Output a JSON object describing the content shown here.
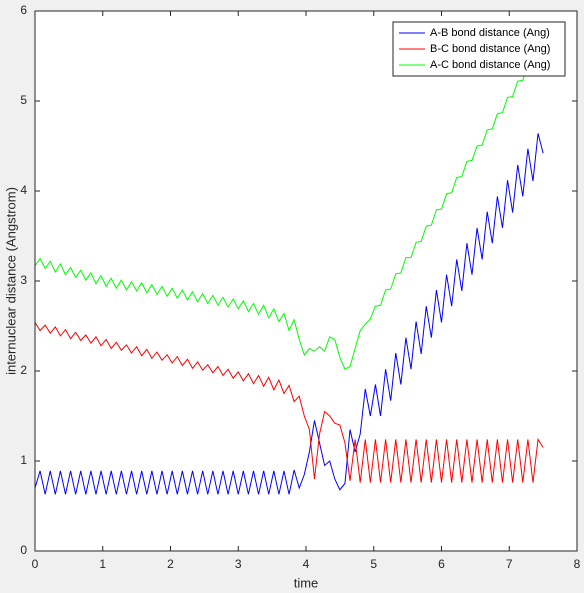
{
  "chart_data": {
    "type": "line",
    "xlabel": "time",
    "ylabel": "internuclear distance (Angstrom)",
    "x": [
      0,
      0.075,
      0.15,
      0.225,
      0.3,
      0.375,
      0.45,
      0.525,
      0.6,
      0.675,
      0.75,
      0.825,
      0.9,
      0.975,
      1.05,
      1.125,
      1.2,
      1.275,
      1.35,
      1.425,
      1.5,
      1.575,
      1.65,
      1.725,
      1.8,
      1.875,
      1.95,
      2.025,
      2.1,
      2.175,
      2.25,
      2.325,
      2.4,
      2.475,
      2.55,
      2.625,
      2.7,
      2.775,
      2.85,
      2.925,
      3,
      3.075,
      3.15,
      3.225,
      3.3,
      3.375,
      3.45,
      3.525,
      3.6,
      3.675,
      3.75,
      3.825,
      3.9,
      3.975,
      4.05,
      4.125,
      4.2,
      4.275,
      4.35,
      4.425,
      4.5,
      4.575,
      4.65,
      4.725,
      4.8,
      4.875,
      4.95,
      5.025,
      5.1,
      5.175,
      5.25,
      5.325,
      5.4,
      5.475,
      5.55,
      5.625,
      5.7,
      5.775,
      5.85,
      5.925,
      6,
      6.075,
      6.15,
      6.225,
      6.3,
      6.375,
      6.45,
      6.525,
      6.6,
      6.675,
      6.75,
      6.825,
      6.9,
      6.975,
      7.05,
      7.125,
      7.2,
      7.275,
      7.35,
      7.425,
      7.5
    ],
    "series": [
      {
        "name": "A-B bond distance (Ang)",
        "color": "#0000ff",
        "values": [
          0.7,
          0.89,
          0.63,
          0.89,
          0.63,
          0.89,
          0.63,
          0.89,
          0.63,
          0.89,
          0.63,
          0.89,
          0.63,
          0.89,
          0.63,
          0.89,
          0.63,
          0.89,
          0.63,
          0.89,
          0.63,
          0.89,
          0.63,
          0.89,
          0.63,
          0.89,
          0.63,
          0.89,
          0.63,
          0.89,
          0.63,
          0.89,
          0.63,
          0.89,
          0.63,
          0.89,
          0.63,
          0.89,
          0.63,
          0.89,
          0.63,
          0.89,
          0.63,
          0.89,
          0.63,
          0.89,
          0.63,
          0.89,
          0.63,
          0.89,
          0.63,
          0.9,
          0.7,
          0.85,
          1.1,
          1.45,
          1.2,
          0.95,
          1.0,
          0.8,
          0.68,
          0.75,
          1.35,
          1.1,
          1.3,
          1.8,
          1.5,
          1.85,
          1.5,
          2.02,
          1.67,
          2.2,
          1.85,
          2.37,
          2.02,
          2.55,
          2.19,
          2.72,
          2.37,
          2.9,
          2.54,
          3.07,
          2.72,
          3.24,
          2.89,
          3.42,
          3.07,
          3.59,
          3.24,
          3.77,
          3.42,
          3.94,
          3.59,
          4.12,
          3.76,
          4.29,
          3.94,
          4.47,
          4.11,
          4.64,
          4.42
        ]
      },
      {
        "name": "B-C bond distance (Ang)",
        "color": "#ff0000",
        "values": [
          2.54,
          2.45,
          2.51,
          2.42,
          2.49,
          2.39,
          2.46,
          2.36,
          2.43,
          2.34,
          2.4,
          2.31,
          2.38,
          2.28,
          2.35,
          2.25,
          2.32,
          2.23,
          2.29,
          2.2,
          2.27,
          2.17,
          2.24,
          2.14,
          2.21,
          2.12,
          2.18,
          2.09,
          2.16,
          2.06,
          2.13,
          2.03,
          2.1,
          2.01,
          2.07,
          1.98,
          2.05,
          1.95,
          2.02,
          1.92,
          1.99,
          1.89,
          1.97,
          1.86,
          1.95,
          1.83,
          1.93,
          1.79,
          1.9,
          1.75,
          1.84,
          1.66,
          1.72,
          1.5,
          1.35,
          0.8,
          1.3,
          1.55,
          1.5,
          1.42,
          1.4,
          1.2,
          0.78,
          1.24,
          0.76,
          1.24,
          0.76,
          1.24,
          0.76,
          1.24,
          0.76,
          1.24,
          0.76,
          1.24,
          0.76,
          1.24,
          0.76,
          1.24,
          0.76,
          1.24,
          0.76,
          1.24,
          0.76,
          1.24,
          0.76,
          1.24,
          0.76,
          1.24,
          0.76,
          1.24,
          0.76,
          1.24,
          0.76,
          1.24,
          0.76,
          1.24,
          0.76,
          1.24,
          0.76,
          1.24,
          1.15
        ]
      },
      {
        "name": "A-C bond distance (Ang)",
        "color": "#00ff00",
        "values": [
          3.17,
          3.25,
          3.14,
          3.22,
          3.1,
          3.19,
          3.07,
          3.15,
          3.04,
          3.12,
          3.01,
          3.09,
          2.97,
          3.06,
          2.94,
          3.03,
          2.92,
          3.01,
          2.9,
          2.99,
          2.89,
          2.98,
          2.87,
          2.96,
          2.85,
          2.94,
          2.83,
          2.92,
          2.81,
          2.9,
          2.79,
          2.88,
          2.77,
          2.86,
          2.75,
          2.84,
          2.73,
          2.82,
          2.71,
          2.8,
          2.69,
          2.78,
          2.66,
          2.75,
          2.63,
          2.73,
          2.59,
          2.69,
          2.55,
          2.64,
          2.45,
          2.57,
          2.35,
          2.18,
          2.25,
          2.22,
          2.27,
          2.22,
          2.38,
          2.35,
          2.15,
          2.02,
          2.05,
          2.25,
          2.45,
          2.52,
          2.58,
          2.72,
          2.73,
          2.9,
          2.91,
          3.08,
          3.09,
          3.26,
          3.26,
          3.43,
          3.44,
          3.61,
          3.62,
          3.79,
          3.8,
          3.97,
          3.98,
          4.15,
          4.16,
          4.33,
          4.34,
          4.5,
          4.51,
          4.68,
          4.69,
          4.86,
          4.87,
          5.04,
          5.05,
          5.22,
          5.23,
          5.4,
          5.41,
          5.57,
          5.62
        ]
      }
    ],
    "xlim": [
      0,
      8
    ],
    "xticks": [
      0,
      1,
      2,
      3,
      4,
      5,
      6,
      7,
      8
    ],
    "ylim": [
      0,
      6
    ],
    "yticks": [
      0,
      1,
      2,
      3,
      4,
      5,
      6
    ],
    "grid": false,
    "legend": "upper right"
  }
}
